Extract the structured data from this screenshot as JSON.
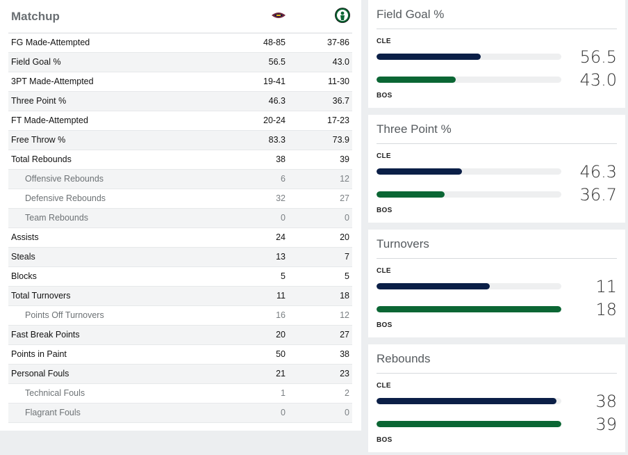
{
  "matchup": {
    "title": "Matchup",
    "teams": [
      {
        "abbr": "CLE",
        "logo_icon": "cavaliers-logo-icon",
        "color": "#6f263d"
      },
      {
        "abbr": "BOS",
        "logo_icon": "celtics-logo-icon",
        "color": "#0b6634"
      }
    ],
    "rows": [
      {
        "label": "FG Made-Attempted",
        "cle": "48-85",
        "bos": "37-86",
        "sub": false
      },
      {
        "label": "Field Goal %",
        "cle": "56.5",
        "bos": "43.0",
        "sub": false
      },
      {
        "label": "3PT Made-Attempted",
        "cle": "19-41",
        "bos": "11-30",
        "sub": false
      },
      {
        "label": "Three Point %",
        "cle": "46.3",
        "bos": "36.7",
        "sub": false
      },
      {
        "label": "FT Made-Attempted",
        "cle": "20-24",
        "bos": "17-23",
        "sub": false
      },
      {
        "label": "Free Throw %",
        "cle": "83.3",
        "bos": "73.9",
        "sub": false
      },
      {
        "label": "Total Rebounds",
        "cle": "38",
        "bos": "39",
        "sub": false
      },
      {
        "label": "Offensive Rebounds",
        "cle": "6",
        "bos": "12",
        "sub": true
      },
      {
        "label": "Defensive Rebounds",
        "cle": "32",
        "bos": "27",
        "sub": true
      },
      {
        "label": "Team Rebounds",
        "cle": "0",
        "bos": "0",
        "sub": true
      },
      {
        "label": "Assists",
        "cle": "24",
        "bos": "20",
        "sub": false
      },
      {
        "label": "Steals",
        "cle": "13",
        "bos": "7",
        "sub": false
      },
      {
        "label": "Blocks",
        "cle": "5",
        "bos": "5",
        "sub": false
      },
      {
        "label": "Total Turnovers",
        "cle": "11",
        "bos": "18",
        "sub": false
      },
      {
        "label": "Points Off Turnovers",
        "cle": "16",
        "bos": "12",
        "sub": true
      },
      {
        "label": "Fast Break Points",
        "cle": "20",
        "bos": "27",
        "sub": false
      },
      {
        "label": "Points in Paint",
        "cle": "50",
        "bos": "38",
        "sub": false
      },
      {
        "label": "Personal Fouls",
        "cle": "21",
        "bos": "23",
        "sub": false
      },
      {
        "label": "Technical Fouls",
        "cle": "1",
        "bos": "2",
        "sub": true
      },
      {
        "label": "Flagrant Fouls",
        "cle": "0",
        "bos": "0",
        "sub": true
      }
    ]
  },
  "cards": [
    {
      "title": "Field Goal %",
      "team1": "CLE",
      "team2": "BOS",
      "v1": "56.5",
      "v2": "43.0",
      "f1": 0.565,
      "f2": 0.43
    },
    {
      "title": "Three Point %",
      "team1": "CLE",
      "team2": "BOS",
      "v1": "46.3",
      "v2": "36.7",
      "f1": 0.463,
      "f2": 0.367
    },
    {
      "title": "Turnovers",
      "team1": "CLE",
      "team2": "BOS",
      "v1": "11",
      "v2": "18",
      "f1": 0.611,
      "f2": 1.0
    },
    {
      "title": "Rebounds",
      "team1": "CLE",
      "team2": "BOS",
      "v1": "38",
      "v2": "39",
      "f1": 0.974,
      "f2": 1.0
    }
  ],
  "colors": {
    "cle_bar": "#0b1f47",
    "bos_bar": "#0b6634"
  }
}
